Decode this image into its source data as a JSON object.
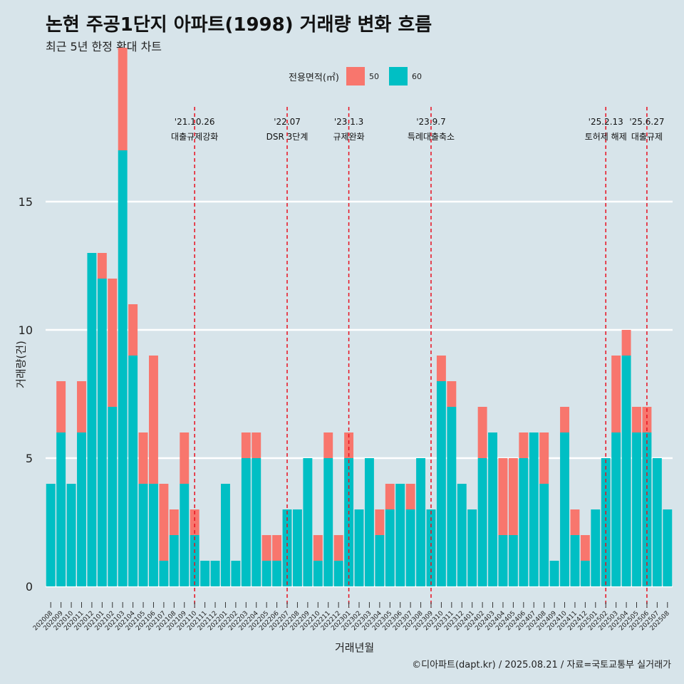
{
  "title": "논현 주공1단지 아파트(1998) 거래량 변화 흐름",
  "subtitle": "최근 5년 한정 확대 차트",
  "caption": "©디아파트(dapt.kr) / 2025.08.21 / 자료=국토교통부 실거래가",
  "colors": {
    "background": "#d7e4ea",
    "series_50": "#f8766d",
    "series_60": "#00bfc4",
    "event_line": "#e8101f"
  },
  "chart_data": {
    "type": "bar",
    "xlabel": "거래년월",
    "ylabel": "거래량(건)",
    "ylim": [
      0,
      18
    ],
    "yticks": [
      0,
      5,
      10,
      15
    ],
    "grid": true,
    "legend": {
      "title": "전용면적(㎡)",
      "position": "top"
    },
    "categories": [
      "202008",
      "202009",
      "202010",
      "202011",
      "202012",
      "202101",
      "202102",
      "202103",
      "202104",
      "202105",
      "202106",
      "202107",
      "202108",
      "202109",
      "202110",
      "202111",
      "202112",
      "202201",
      "202202",
      "202203",
      "202204",
      "202205",
      "202206",
      "202207",
      "202208",
      "202209",
      "202210",
      "202211",
      "202212",
      "202301",
      "202302",
      "202303",
      "202304",
      "202305",
      "202306",
      "202307",
      "202308",
      "202309",
      "202310",
      "202311",
      "202312",
      "202401",
      "202402",
      "202403",
      "202404",
      "202405",
      "202406",
      "202407",
      "202408",
      "202409",
      "202410",
      "202411",
      "202412",
      "202501",
      "202502",
      "202503",
      "202504",
      "202505",
      "202506",
      "202507",
      "202508"
    ],
    "series": [
      {
        "name": "50",
        "values": [
          0,
          2,
          0,
          2,
          0,
          1,
          5,
          4,
          2,
          2,
          5,
          3,
          1,
          2,
          1,
          0,
          0,
          0,
          0,
          1,
          1,
          1,
          1,
          0,
          0,
          0,
          1,
          1,
          1,
          1,
          0,
          0,
          1,
          1,
          0,
          1,
          0,
          0,
          1,
          1,
          0,
          0,
          2,
          0,
          3,
          3,
          1,
          0,
          2,
          0,
          1,
          1,
          1,
          0,
          0,
          3,
          1,
          1,
          1,
          0,
          0
        ]
      },
      {
        "name": "60",
        "values": [
          4,
          6,
          4,
          6,
          13,
          12,
          7,
          17,
          9,
          4,
          4,
          1,
          2,
          4,
          2,
          1,
          1,
          4,
          1,
          5,
          5,
          1,
          1,
          3,
          3,
          5,
          1,
          5,
          1,
          5,
          3,
          5,
          2,
          3,
          4,
          3,
          5,
          3,
          8,
          7,
          4,
          3,
          5,
          6,
          2,
          2,
          5,
          6,
          4,
          1,
          6,
          2,
          1,
          3,
          5,
          6,
          9,
          6,
          6,
          5,
          3
        ]
      }
    ],
    "events": [
      {
        "date": "'21.10.26",
        "label": "대출규제강화",
        "category": "202110"
      },
      {
        "date": "'22.07",
        "label": "DSR 3단계",
        "category": "202207"
      },
      {
        "date": "'23.1.3",
        "label": "규제완화",
        "category": "202301"
      },
      {
        "date": "'23.9.7",
        "label": "특례대출축소",
        "category": "202309"
      },
      {
        "date": "'25.2.13",
        "label": "토허제 해제",
        "category": "202502"
      },
      {
        "date": "'25.6.27",
        "label": "대출규제",
        "category": "202506"
      }
    ]
  }
}
